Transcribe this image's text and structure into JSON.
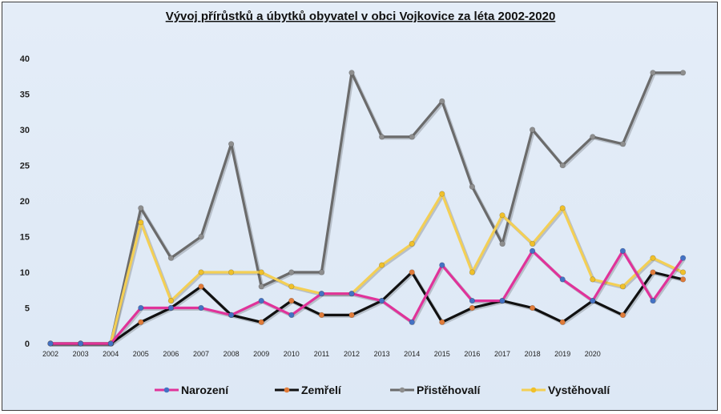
{
  "chart_data": {
    "type": "line",
    "title": "Vývoj přírůstků a úbytků obyvatel v obci Vojkovice za léta 2002-2020",
    "xlabel": "",
    "ylabel": "",
    "ylim": [
      0,
      40
    ],
    "yticks": [
      0,
      5,
      10,
      15,
      20,
      25,
      30,
      35,
      40
    ],
    "grid": false,
    "legend_position": "bottom",
    "x_tick_labels": [
      "2002",
      "2003",
      "2004",
      "2005",
      "2006",
      "2007",
      "2008",
      "2009",
      "2010",
      "2011",
      "2012",
      "2013",
      "2014",
      "2015",
      "2016",
      "2017",
      "2018",
      "2019",
      "2020"
    ],
    "x_positions_count": 22,
    "series": [
      {
        "name": "Přistěhovalí",
        "line_color": "#6b6b6b",
        "marker_color": "#8e8e8e",
        "values": [
          0,
          0,
          0,
          19,
          12,
          15,
          28,
          8,
          10,
          10,
          38,
          29,
          29,
          34,
          22,
          14,
          30,
          25,
          29,
          28,
          38,
          38
        ]
      },
      {
        "name": "Vystěhovalí",
        "line_color": "#f3cf55",
        "marker_color": "#f0c02a",
        "values": [
          0,
          0,
          0,
          17,
          6,
          10,
          10,
          10,
          8,
          7,
          7,
          11,
          14,
          21,
          10,
          18,
          14,
          19,
          9,
          8,
          12,
          10
        ]
      },
      {
        "name": "Zemřelí",
        "line_color": "#111111",
        "marker_color": "#e07b39",
        "values": [
          0,
          0,
          0,
          3,
          5,
          8,
          4,
          3,
          6,
          4,
          4,
          6,
          10,
          3,
          5,
          6,
          5,
          3,
          6,
          4,
          10,
          9
        ]
      },
      {
        "name": "Narození",
        "line_color": "#e0339a",
        "marker_color": "#4472c4",
        "values": [
          0,
          0,
          0,
          5,
          5,
          5,
          4,
          6,
          4,
          7,
          7,
          6,
          3,
          11,
          6,
          6,
          13,
          9,
          6,
          13,
          6,
          12
        ]
      }
    ],
    "legend_order": [
      "Narození",
      "Zemřelí",
      "Přistěhovalí",
      "Vystěhovalí"
    ]
  }
}
